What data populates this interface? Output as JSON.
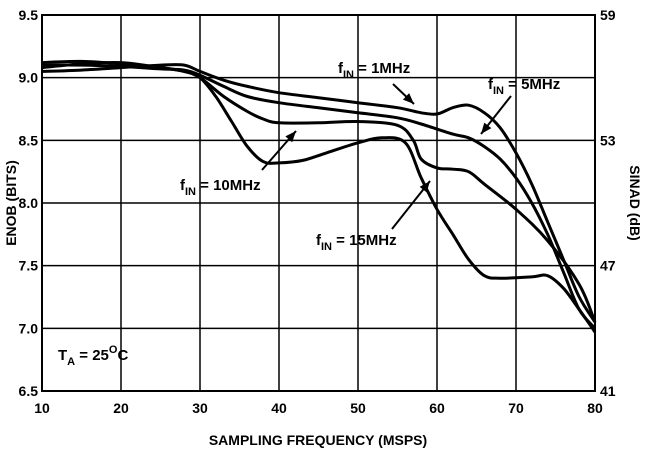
{
  "chart_data": {
    "type": "line",
    "xlabel": "SAMPLING FREQUENCY (MSPS)",
    "ylabel": "ENOB (BITS)",
    "y2label": "SINAD (dB)",
    "xlim": [
      10,
      80
    ],
    "ylim": [
      6.5,
      9.5
    ],
    "y2lim": [
      41,
      59
    ],
    "grid": true,
    "x_ticks": [
      "10",
      "20",
      "30",
      "40",
      "50",
      "60",
      "70",
      "80"
    ],
    "y_ticks": [
      "6.5",
      "7.0",
      "7.5",
      "8.0",
      "8.5",
      "9.0",
      "9.5"
    ],
    "y2_ticks": [
      {
        "label": "41",
        "value": 41
      },
      {
        "label": "47",
        "value": 47
      },
      {
        "label": "53",
        "value": 53
      },
      {
        "label": "59",
        "value": 59
      }
    ],
    "series": [
      {
        "name_main": "f",
        "name_sub": "IN",
        "name_rest": " = 1MHz",
        "points": [
          [
            10,
            9.05
          ],
          [
            15,
            9.06
          ],
          [
            20,
            9.08
          ],
          [
            25,
            9.1
          ],
          [
            28,
            9.1
          ],
          [
            30,
            9.05
          ],
          [
            33,
            8.98
          ],
          [
            36,
            8.93
          ],
          [
            40,
            8.88
          ],
          [
            45,
            8.84
          ],
          [
            50,
            8.8
          ],
          [
            55,
            8.76
          ],
          [
            58,
            8.72
          ],
          [
            60,
            8.71
          ],
          [
            62,
            8.76
          ],
          [
            64,
            8.78
          ],
          [
            66,
            8.72
          ],
          [
            68,
            8.6
          ],
          [
            70,
            8.4
          ],
          [
            72,
            8.15
          ],
          [
            74,
            7.85
          ],
          [
            76,
            7.55
          ],
          [
            78,
            7.25
          ],
          [
            80,
            7.05
          ]
        ]
      },
      {
        "name_main": "f",
        "name_sub": "IN",
        "name_rest": " = 5MHz",
        "points": [
          [
            10,
            9.1
          ],
          [
            15,
            9.1
          ],
          [
            20,
            9.09
          ],
          [
            25,
            9.07
          ],
          [
            28,
            9.06
          ],
          [
            30,
            9.02
          ],
          [
            33,
            8.93
          ],
          [
            36,
            8.85
          ],
          [
            40,
            8.8
          ],
          [
            45,
            8.76
          ],
          [
            50,
            8.72
          ],
          [
            55,
            8.68
          ],
          [
            58,
            8.63
          ],
          [
            62,
            8.55
          ],
          [
            64,
            8.52
          ],
          [
            66,
            8.45
          ],
          [
            68,
            8.35
          ],
          [
            70,
            8.2
          ],
          [
            72,
            8.0
          ],
          [
            74,
            7.75
          ],
          [
            76,
            7.45
          ],
          [
            78,
            7.15
          ],
          [
            80,
            7.0
          ]
        ]
      },
      {
        "name_main": "f",
        "name_sub": "IN",
        "name_rest": " = 10MHz",
        "points": [
          [
            10,
            9.12
          ],
          [
            15,
            9.13
          ],
          [
            20,
            9.11
          ],
          [
            25,
            9.08
          ],
          [
            28,
            9.05
          ],
          [
            30,
            9.0
          ],
          [
            33,
            8.85
          ],
          [
            36,
            8.73
          ],
          [
            38,
            8.67
          ],
          [
            40,
            8.64
          ],
          [
            45,
            8.64
          ],
          [
            50,
            8.65
          ],
          [
            55,
            8.62
          ],
          [
            57,
            8.5
          ],
          [
            58,
            8.35
          ],
          [
            60,
            8.28
          ],
          [
            62,
            8.27
          ],
          [
            64,
            8.25
          ],
          [
            66,
            8.15
          ],
          [
            70,
            7.95
          ],
          [
            74,
            7.7
          ],
          [
            78,
            7.35
          ],
          [
            80,
            7.05
          ]
        ]
      },
      {
        "name_main": "f",
        "name_sub": "IN",
        "name_rest": " = 15MHz",
        "points": [
          [
            10,
            9.08
          ],
          [
            15,
            9.11
          ],
          [
            20,
            9.12
          ],
          [
            25,
            9.08
          ],
          [
            28,
            9.05
          ],
          [
            30,
            9.0
          ],
          [
            32,
            8.85
          ],
          [
            34,
            8.65
          ],
          [
            36,
            8.45
          ],
          [
            38,
            8.33
          ],
          [
            40,
            8.32
          ],
          [
            43,
            8.34
          ],
          [
            46,
            8.4
          ],
          [
            50,
            8.48
          ],
          [
            53,
            8.52
          ],
          [
            56,
            8.48
          ],
          [
            58,
            8.2
          ],
          [
            60,
            7.95
          ],
          [
            62,
            7.75
          ],
          [
            64,
            7.55
          ],
          [
            66,
            7.42
          ],
          [
            68,
            7.4
          ],
          [
            72,
            7.41
          ],
          [
            74,
            7.42
          ],
          [
            76,
            7.32
          ],
          [
            78,
            7.15
          ],
          [
            80,
            6.97
          ]
        ]
      }
    ],
    "annotations": [
      {
        "main": "f",
        "sub": "IN",
        "rest": " = 1MHz"
      },
      {
        "main": "f",
        "sub": "IN",
        "rest": " = 5MHz"
      },
      {
        "main": "f",
        "sub": "IN",
        "rest": " = 10MHz"
      },
      {
        "main": "f",
        "sub": "IN",
        "rest": " = 15MHz"
      }
    ],
    "condition": {
      "main": "T",
      "sub": "A",
      "rest": " = 25",
      "sup": "O",
      "tail": "C"
    }
  }
}
